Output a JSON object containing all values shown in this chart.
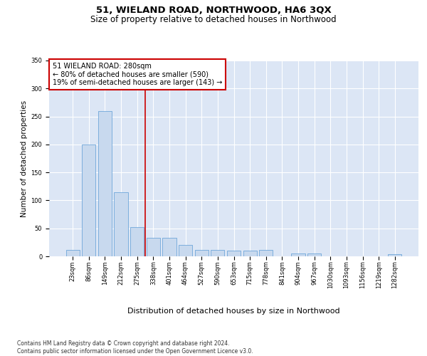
{
  "title": "51, WIELAND ROAD, NORTHWOOD, HA6 3QX",
  "subtitle": "Size of property relative to detached houses in Northwood",
  "xlabel": "Distribution of detached houses by size in Northwood",
  "ylabel": "Number of detached properties",
  "bar_color": "#c8d9ee",
  "bar_edge_color": "#5b9bd5",
  "vline_color": "#cc0000",
  "vline_x": 4.5,
  "annotation_text": "51 WIELAND ROAD: 280sqm\n← 80% of detached houses are smaller (590)\n19% of semi-detached houses are larger (143) →",
  "annotation_box_color": "#ffffff",
  "annotation_box_edge": "#cc0000",
  "footnote": "Contains HM Land Registry data © Crown copyright and database right 2024.\nContains public sector information licensed under the Open Government Licence v3.0.",
  "categories": [
    "23sqm",
    "86sqm",
    "149sqm",
    "212sqm",
    "275sqm",
    "338sqm",
    "401sqm",
    "464sqm",
    "527sqm",
    "590sqm",
    "653sqm",
    "715sqm",
    "778sqm",
    "841sqm",
    "904sqm",
    "967sqm",
    "1030sqm",
    "1093sqm",
    "1156sqm",
    "1219sqm",
    "1282sqm"
  ],
  "values": [
    12,
    200,
    260,
    115,
    52,
    33,
    33,
    20,
    12,
    12,
    10,
    10,
    12,
    0,
    5,
    5,
    0,
    0,
    0,
    0,
    4
  ],
  "ylim": [
    0,
    350
  ],
  "yticks": [
    0,
    50,
    100,
    150,
    200,
    250,
    300,
    350
  ],
  "plot_bg_color": "#dce6f5",
  "grid_color": "#ffffff",
  "title_fontsize": 9.5,
  "subtitle_fontsize": 8.5,
  "xlabel_fontsize": 8,
  "ylabel_fontsize": 7.5,
  "tick_fontsize": 6,
  "annot_fontsize": 7,
  "footnote_fontsize": 5.5
}
